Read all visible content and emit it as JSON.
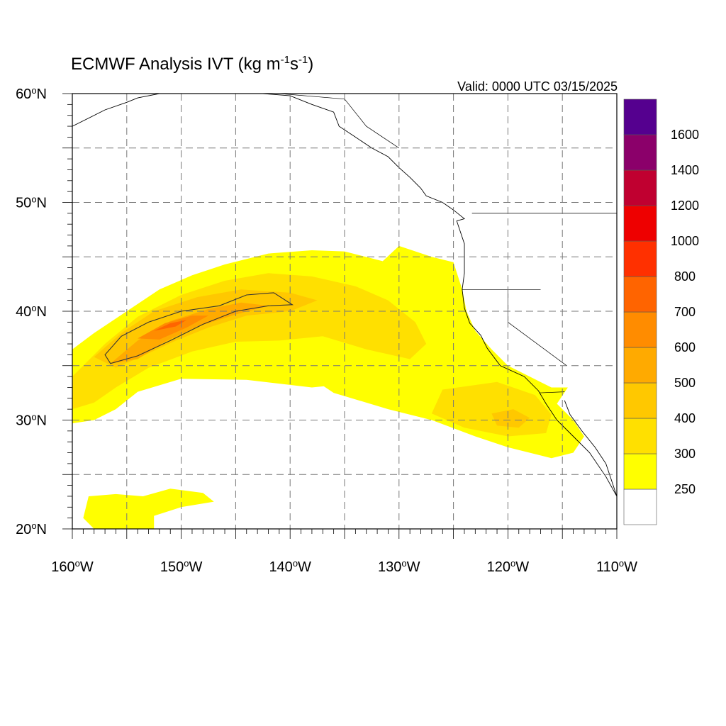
{
  "title": {
    "main": "ECMWF Analysis IVT (kg m",
    "exp1": "-1",
    "mid": "s",
    "exp2": "-1",
    "end": ")"
  },
  "valid_label": "Valid: 0000 UTC 03/15/2025",
  "map": {
    "projection": "cylindrical-equidistant",
    "lon_range": [
      -160,
      -110
    ],
    "lat_range": [
      20,
      60
    ],
    "grid": "dashed every 5 degrees",
    "frame_color": "#000000",
    "grid_color": "#777777"
  },
  "lat_ticks": [
    {
      "value": 60,
      "label": "60",
      "hemi": "N"
    },
    {
      "value": 50,
      "label": "50",
      "hemi": "N"
    },
    {
      "value": 40,
      "label": "40",
      "hemi": "N"
    },
    {
      "value": 30,
      "label": "30",
      "hemi": "N"
    },
    {
      "value": 20,
      "label": "20",
      "hemi": "N"
    }
  ],
  "lon_ticks": [
    {
      "value": -160,
      "label": "160",
      "hemi": "W"
    },
    {
      "value": -150,
      "label": "150",
      "hemi": "W"
    },
    {
      "value": -140,
      "label": "140",
      "hemi": "W"
    },
    {
      "value": -130,
      "label": "130",
      "hemi": "W"
    },
    {
      "value": -120,
      "label": "120",
      "hemi": "W"
    },
    {
      "value": -110,
      "label": "110",
      "hemi": "W"
    }
  ],
  "colorbar": {
    "levels": [
      250,
      300,
      400,
      500,
      600,
      700,
      800,
      1000,
      1200,
      1400,
      1600
    ],
    "labels": [
      "250",
      "300",
      "400",
      "500",
      "600",
      "700",
      "800",
      "1000",
      "1200",
      "1400",
      "1600"
    ],
    "colors": [
      "#ffffff",
      "#ffff00",
      "#ffe000",
      "#ffc800",
      "#ffaa00",
      "#ff8c00",
      "#ff6400",
      "#ff3000",
      "#ee0000",
      "#c00030",
      "#8b006a",
      "#55008f"
    ]
  },
  "ivt_field": [
    {
      "level": 250,
      "color": "#ffff00",
      "lonlat": [
        [
          -160,
          36.5
        ],
        [
          -158,
          38
        ],
        [
          -155,
          40
        ],
        [
          -152,
          42
        ],
        [
          -149,
          43.3
        ],
        [
          -146,
          44.3
        ],
        [
          -142,
          45.3
        ],
        [
          -138,
          45.6
        ],
        [
          -135,
          45.5
        ],
        [
          -131.5,
          44.6
        ],
        [
          -130,
          46
        ],
        [
          -127,
          45
        ],
        [
          -125,
          44.5
        ],
        [
          -124.2,
          42
        ],
        [
          -123.8,
          40
        ],
        [
          -123,
          38.2
        ],
        [
          -121.5,
          36.5
        ],
        [
          -120,
          35
        ],
        [
          -118,
          34
        ],
        [
          -116,
          33
        ],
        [
          -114.5,
          33
        ],
        [
          -115.5,
          31.5
        ],
        [
          -114,
          30
        ],
        [
          -113,
          28.5
        ],
        [
          -114,
          27
        ],
        [
          -116,
          26.5
        ],
        [
          -120,
          27.5
        ],
        [
          -123,
          28.5
        ],
        [
          -127,
          30
        ],
        [
          -131,
          31
        ],
        [
          -136,
          32.5
        ],
        [
          -139,
          34.5
        ],
        [
          -141.5,
          36
        ],
        [
          -138,
          37
        ],
        [
          -134,
          36.5
        ],
        [
          -131,
          35
        ],
        [
          -133,
          33.5
        ],
        [
          -138,
          33
        ],
        [
          -144,
          33.7
        ],
        [
          -150,
          33.8
        ],
        [
          -154,
          32.6
        ],
        [
          -156,
          31
        ],
        [
          -158,
          30
        ],
        [
          -160,
          29.7
        ]
      ]
    },
    {
      "level": 300,
      "color": "#ffe000",
      "lonlat": [
        [
          -160,
          34
        ],
        [
          -157,
          37
        ],
        [
          -154,
          39.5
        ],
        [
          -150,
          41.5
        ],
        [
          -146,
          42.8
        ],
        [
          -142,
          43.5
        ],
        [
          -138,
          43.2
        ],
        [
          -134,
          42.3
        ],
        [
          -131,
          41
        ],
        [
          -128.5,
          39
        ],
        [
          -127.5,
          37
        ],
        [
          -129,
          35.6
        ],
        [
          -133,
          36.5
        ],
        [
          -137,
          37.7
        ],
        [
          -141,
          37.3
        ],
        [
          -145,
          37.2
        ],
        [
          -149,
          36.3
        ],
        [
          -153,
          34.8
        ],
        [
          -156,
          33
        ],
        [
          -158,
          31.6
        ],
        [
          -160,
          31
        ]
      ]
    },
    {
      "level": 300,
      "color": "#ffe000",
      "lonlat": [
        [
          -126,
          32.8
        ],
        [
          -121,
          33.5
        ],
        [
          -117.5,
          32.3
        ],
        [
          -116,
          30.5
        ],
        [
          -116.5,
          28.8
        ],
        [
          -120,
          28.5
        ],
        [
          -124,
          29.3
        ],
        [
          -127,
          30.6
        ]
      ]
    },
    {
      "level": 250,
      "color": "#ffff00",
      "lonlat": [
        [
          -158.5,
          23
        ],
        [
          -156,
          23.2
        ],
        [
          -153.5,
          23
        ],
        [
          -151,
          23.7
        ],
        [
          -148,
          23.3
        ],
        [
          -147,
          22.5
        ],
        [
          -150,
          22
        ],
        [
          -152.5,
          21.2
        ],
        [
          -152.5,
          20
        ],
        [
          -158,
          20
        ],
        [
          -159,
          21
        ]
      ]
    },
    {
      "level": 400,
      "color": "#ffc800",
      "lonlat": [
        [
          -158,
          35.8
        ],
        [
          -155.5,
          38
        ],
        [
          -152.5,
          40
        ],
        [
          -148.5,
          41.3
        ],
        [
          -144.5,
          42
        ],
        [
          -140,
          41.7
        ],
        [
          -137.5,
          41
        ],
        [
          -140,
          40
        ],
        [
          -144,
          39.6
        ],
        [
          -147.5,
          38.5
        ],
        [
          -150.5,
          37.3
        ],
        [
          -153.5,
          35.9
        ],
        [
          -156,
          34.8
        ]
      ]
    },
    {
      "level": 400,
      "color": "#ffc800",
      "lonlat": [
        [
          -121.5,
          30.6
        ],
        [
          -119.5,
          31
        ],
        [
          -118,
          30.2
        ],
        [
          -119,
          29.3
        ],
        [
          -121,
          29.5
        ]
      ]
    },
    {
      "level": 500,
      "color": "#ffaa00",
      "lonlat": [
        [
          -156.5,
          35.2
        ],
        [
          -154,
          37.3
        ],
        [
          -151,
          39.1
        ],
        [
          -147.5,
          40.2
        ],
        [
          -144.5,
          40.8
        ],
        [
          -142,
          40.5
        ],
        [
          -145,
          39.7
        ],
        [
          -148.5,
          38.6
        ],
        [
          -151.5,
          37.2
        ],
        [
          -154,
          35.6
        ]
      ]
    },
    {
      "level": 600,
      "color": "#ff8c00",
      "lonlat": [
        [
          -154,
          37.5
        ],
        [
          -151.5,
          38.9
        ],
        [
          -149,
          39.6
        ],
        [
          -147.5,
          39.6
        ],
        [
          -149.5,
          38.5
        ],
        [
          -152,
          37.4
        ]
      ]
    },
    {
      "level": 700,
      "color": "#ff6400",
      "lonlat": [
        [
          -152.5,
          38.2
        ],
        [
          -151,
          38.9
        ],
        [
          -149.5,
          39.2
        ],
        [
          -150.5,
          38.6
        ]
      ]
    }
  ],
  "contour_500": {
    "color": "#333333",
    "lonlat": [
      [
        -156.5,
        35.2
      ],
      [
        -157,
        36
      ],
      [
        -155.5,
        37.7
      ],
      [
        -153,
        39
      ],
      [
        -150,
        40
      ],
      [
        -146.5,
        40.5
      ],
      [
        -144,
        41.5
      ],
      [
        -141.5,
        41.7
      ],
      [
        -139.8,
        40.6
      ],
      [
        -142,
        40.5
      ],
      [
        -145,
        40
      ],
      [
        -148,
        38.8
      ],
      [
        -151,
        37.3
      ],
      [
        -154,
        35.9
      ]
    ]
  },
  "coastline": {
    "color": "#000000",
    "north_america": [
      [
        -142.5,
        60
      ],
      [
        -140,
        59.8
      ],
      [
        -138,
        59
      ],
      [
        -136,
        58.3
      ],
      [
        -135.5,
        57
      ],
      [
        -134,
        56
      ],
      [
        -132.5,
        55
      ],
      [
        -131,
        54.2
      ],
      [
        -130,
        53.2
      ],
      [
        -129,
        52.3
      ],
      [
        -128,
        51.3
      ],
      [
        -127.5,
        50.6
      ],
      [
        -126,
        50
      ],
      [
        -125,
        49.3
      ],
      [
        -124,
        48.5
      ],
      [
        -124.7,
        48.3
      ],
      [
        -124,
        46.2
      ],
      [
        -124,
        43.5
      ],
      [
        -124.2,
        42
      ],
      [
        -124,
        40.3
      ],
      [
        -123.5,
        38.9
      ],
      [
        -122.5,
        37.8
      ],
      [
        -121.9,
        36.6
      ],
      [
        -120.7,
        35
      ],
      [
        -118.5,
        34
      ],
      [
        -117.2,
        32.7
      ],
      [
        -116.5,
        31.5
      ],
      [
        -115.5,
        30
      ],
      [
        -114,
        28.5
      ],
      [
        -112.5,
        27
      ],
      [
        -111,
        24.8
      ],
      [
        -110,
        23
      ]
    ],
    "baja_gulf": [
      [
        -114.8,
        31.8
      ],
      [
        -114.3,
        30.5
      ],
      [
        -113.2,
        29
      ],
      [
        -112,
        27.5
      ],
      [
        -111,
        26
      ],
      [
        -110.5,
        24.5
      ],
      [
        -110,
        23
      ]
    ],
    "alaska_peninsula": [
      [
        -160,
        57
      ],
      [
        -157,
        58.5
      ],
      [
        -155,
        59.2
      ],
      [
        -154,
        59.6
      ],
      [
        -152,
        60
      ]
    ]
  },
  "boundaries": {
    "color": "#000000",
    "us_canada": [
      [
        -123.3,
        49
      ],
      [
        -95,
        49
      ]
    ],
    "california_nevada": [
      [
        -120,
        42
      ],
      [
        -120,
        39
      ],
      [
        -114.6,
        35
      ]
    ],
    "or_ca_line": [
      [
        -124.2,
        42
      ],
      [
        -117,
        42
      ]
    ],
    "us_mexico": [
      [
        -117.1,
        32.5
      ],
      [
        -114.8,
        32.6
      ]
    ],
    "ak_bc": [
      [
        -141,
        60
      ],
      [
        -135,
        59.5
      ],
      [
        -133,
        57
      ],
      [
        -130,
        55
      ]
    ]
  }
}
